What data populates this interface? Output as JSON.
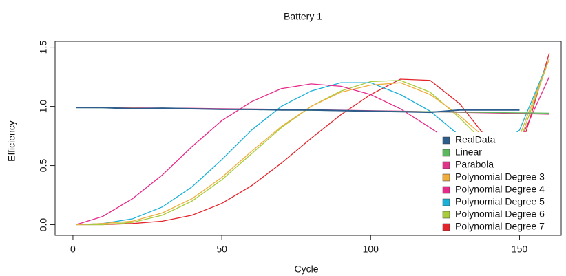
{
  "chart_data": {
    "type": "line",
    "title": "Battery 1",
    "x_label": "Cycle",
    "y_label": "Efficiency",
    "x": [
      1,
      10,
      20,
      30,
      40,
      50,
      60,
      70,
      80,
      90,
      100,
      110,
      120,
      130,
      140,
      150,
      160
    ],
    "series": [
      {
        "name": "RealData",
        "color": "#2c5d8c",
        "values": [
          0.99,
          0.99,
          0.98,
          0.985,
          0.98,
          0.975,
          0.975,
          0.97,
          0.97,
          0.965,
          0.96,
          0.955,
          0.95,
          0.97,
          0.97,
          0.97,
          null
        ]
      },
      {
        "name": "Linear",
        "color": "#5cb85c",
        "values": [
          0.99,
          0.988,
          0.985,
          0.982,
          0.979,
          0.976,
          0.973,
          0.97,
          0.967,
          0.964,
          0.961,
          0.958,
          0.955,
          0.952,
          0.949,
          0.946,
          0.943
        ]
      },
      {
        "name": "Parabola",
        "color": "#e0338a",
        "values": [
          0.99,
          0.99,
          0.988,
          0.986,
          0.984,
          0.981,
          0.978,
          0.975,
          0.972,
          0.968,
          0.964,
          0.96,
          0.955,
          0.95,
          0.945,
          0.94,
          0.934
        ]
      },
      {
        "name": "Polynomial Degree 3",
        "color": "#f0ad3c",
        "values": [
          0,
          0.01,
          0.03,
          0.1,
          0.22,
          0.4,
          0.62,
          0.83,
          1.0,
          1.12,
          1.18,
          1.2,
          1.1,
          0.92,
          0.7,
          0.75,
          1.4
        ]
      },
      {
        "name": "Polynomial Degree 4",
        "color": "#e7298a",
        "values": [
          0,
          0.07,
          0.22,
          0.42,
          0.66,
          0.88,
          1.04,
          1.15,
          1.19,
          1.17,
          1.1,
          0.98,
          0.82,
          0.65,
          0.55,
          0.7,
          1.25
        ]
      },
      {
        "name": "Polynomial Degree 5",
        "color": "#1ab0d8",
        "values": [
          0,
          0.01,
          0.05,
          0.15,
          0.32,
          0.55,
          0.8,
          1.0,
          1.13,
          1.2,
          1.2,
          1.1,
          0.96,
          0.75,
          0.6,
          0.8,
          1.4
        ]
      },
      {
        "name": "Polynomial Degree 6",
        "color": "#a8cc3a",
        "values": [
          0,
          0,
          0.02,
          0.08,
          0.2,
          0.38,
          0.6,
          0.82,
          1.0,
          1.13,
          1.21,
          1.22,
          1.12,
          0.9,
          0.65,
          0.7,
          1.4
        ]
      },
      {
        "name": "Polynomial Degree 7",
        "color": "#e3242b",
        "values": [
          0,
          0,
          0.01,
          0.03,
          0.08,
          0.18,
          0.33,
          0.52,
          0.73,
          0.93,
          1.1,
          1.23,
          1.22,
          1.02,
          0.7,
          0.6,
          1.45
        ]
      }
    ],
    "xlim": [
      -6,
      164
    ],
    "ylim": [
      -0.09,
      1.55
    ],
    "xticks": [
      0,
      50,
      100,
      150
    ],
    "yticks": [
      {
        "value": 0,
        "label": "0.0"
      },
      {
        "value": 0.5,
        "label": "0.5"
      },
      {
        "value": 1,
        "label": "1.0"
      },
      {
        "value": 1.5,
        "label": "1.5"
      }
    ],
    "legend": "bottom-right"
  }
}
